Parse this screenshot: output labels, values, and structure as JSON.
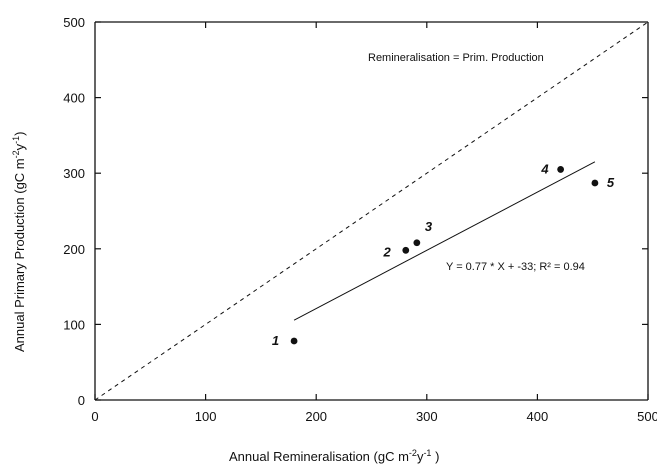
{
  "chart_data": {
    "type": "scatter",
    "xlabel": "Annual Remineralisation (gC m",
    "xlabel_sup": "-2",
    "xlabel_mid": "y",
    "xlabel_sup2": "-1",
    "xlabel_end": " )",
    "ylabel": "Annual Primary Production  (gC m",
    "ylabel_sup": "-2",
    "ylabel_mid": "y",
    "ylabel_sup2": "-1",
    "ylabel_end": ")",
    "xlim": [
      0,
      500
    ],
    "ylim": [
      0,
      500
    ],
    "xticks": [
      "0",
      "100",
      "200",
      "300",
      "400",
      "500"
    ],
    "yticks": [
      "0",
      "100",
      "200",
      "300",
      "400",
      "500"
    ],
    "points": [
      {
        "label": "1",
        "x": 180,
        "y": 78
      },
      {
        "label": "2",
        "x": 281,
        "y": 198
      },
      {
        "label": "3",
        "x": 291,
        "y": 208
      },
      {
        "label": "4",
        "x": 421,
        "y": 305
      },
      {
        "label": "5",
        "x": 452,
        "y": 287
      }
    ],
    "fit": {
      "slope": 0.77,
      "intercept": -33,
      "x_range": [
        180,
        452
      ]
    },
    "fit_annotation": "Y = 0.77 * X + -33; R² = 0.94",
    "reference_line": {
      "label": "Remineralisation = Prim. Production",
      "slope": 1,
      "intercept": 0
    }
  }
}
